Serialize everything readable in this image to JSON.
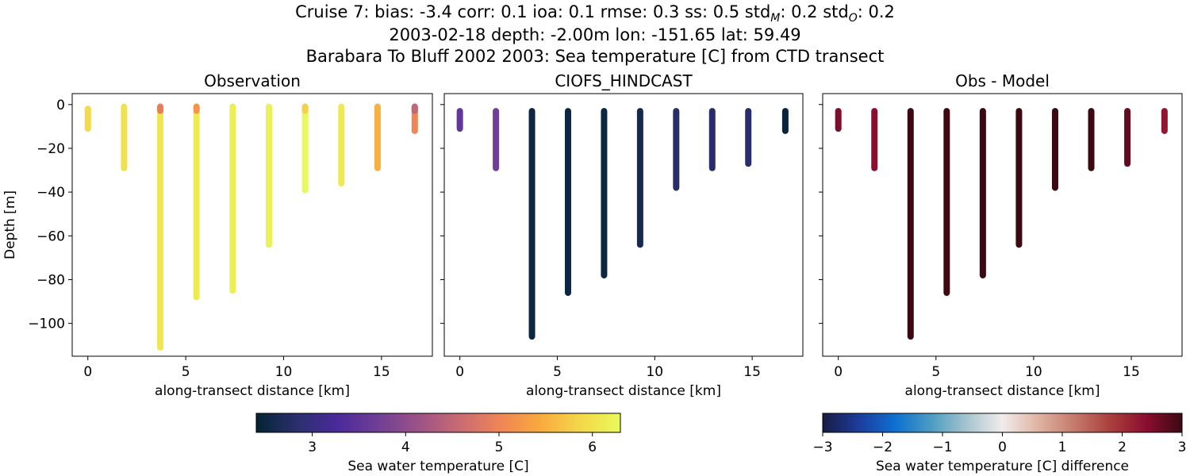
{
  "title": {
    "line1": "Cruise 7: bias: -3.4  corr: 0.1  ioa: 0.1  rmse: 0.3  ss: 0.5  std_M: 0.2  std_O: 0.2",
    "line1_parts": [
      "Cruise 7: bias: -3.4  corr: 0.1  ioa: 0.1  rmse: 0.3  ss: 0.5  std",
      "M",
      ": 0.2  std",
      "O",
      ": 0.2"
    ],
    "line2": "2003-02-18 depth: -2.00m lon: -151.65 lat: 59.49",
    "line3": "Barabara To Bluff 2002 2003: Sea temperature [C] from CTD transect"
  },
  "chart_data": [
    {
      "type": "scatter",
      "title": "Observation",
      "xlabel": "along-transect distance [km]",
      "ylabel": "Depth [m]",
      "xlim": [
        -0.8,
        17.6
      ],
      "ylim": [
        -115,
        5
      ],
      "xticks": [
        0,
        5,
        10,
        15
      ],
      "yticks": [
        0,
        -20,
        -40,
        -60,
        -80,
        -100
      ],
      "colormap": "thermal",
      "vmin": 2.4,
      "vmax": 6.3,
      "stations": [
        {
          "x": 0.0,
          "top": -2,
          "bottom": -11,
          "value": 5.9
        },
        {
          "x": 1.85,
          "top": -1,
          "bottom": -29,
          "value": 6.0
        },
        {
          "x": 3.7,
          "top": -1,
          "bottom": -111,
          "value": 6.05,
          "surface_value": 4.9
        },
        {
          "x": 5.55,
          "top": -1,
          "bottom": -88,
          "value": 6.1,
          "surface_value": 5.2
        },
        {
          "x": 7.4,
          "top": -1,
          "bottom": -85,
          "value": 6.15
        },
        {
          "x": 9.25,
          "top": -1,
          "bottom": -64,
          "value": 6.2
        },
        {
          "x": 11.1,
          "top": -1,
          "bottom": -39,
          "value": 6.3,
          "surface_value": 5.8
        },
        {
          "x": 12.95,
          "top": -1,
          "bottom": -36,
          "value": 6.1
        },
        {
          "x": 14.8,
          "top": -1,
          "bottom": -29,
          "value": 5.5
        },
        {
          "x": 16.7,
          "top": -1,
          "bottom": -12,
          "value": 5.0,
          "surface_value": 4.5
        }
      ]
    },
    {
      "type": "scatter",
      "title": "CIOFS_HINDCAST",
      "xlabel": "along-transect distance [km]",
      "xlim": [
        -0.8,
        17.6
      ],
      "ylim": [
        -115,
        5
      ],
      "xticks": [
        0,
        5,
        10,
        15
      ],
      "yticks": [
        0,
        -20,
        -40,
        -60,
        -80,
        -100
      ],
      "colormap": "thermal",
      "vmin": 2.4,
      "vmax": 6.3,
      "stations": [
        {
          "x": 0.0,
          "top": -3,
          "bottom": -11,
          "value": 3.55
        },
        {
          "x": 1.85,
          "top": -3,
          "bottom": -29,
          "value": 3.7
        },
        {
          "x": 3.7,
          "top": -3,
          "bottom": -106,
          "value": 2.5
        },
        {
          "x": 5.55,
          "top": -3,
          "bottom": -86,
          "value": 2.5
        },
        {
          "x": 7.4,
          "top": -3,
          "bottom": -78,
          "value": 2.5
        },
        {
          "x": 9.25,
          "top": -3,
          "bottom": -64,
          "value": 2.6
        },
        {
          "x": 11.1,
          "top": -3,
          "bottom": -38,
          "value": 2.8
        },
        {
          "x": 12.95,
          "top": -3,
          "bottom": -29,
          "value": 2.8
        },
        {
          "x": 14.8,
          "top": -3,
          "bottom": -27,
          "value": 2.8
        },
        {
          "x": 16.7,
          "top": -3,
          "bottom": -12,
          "value": 2.45
        }
      ]
    },
    {
      "type": "scatter",
      "title": "Obs - Model",
      "xlabel": "along-transect distance [km]",
      "xlim": [
        -0.8,
        17.6
      ],
      "ylim": [
        -115,
        5
      ],
      "xticks": [
        0,
        5,
        10,
        15
      ],
      "yticks": [
        0,
        -20,
        -40,
        -60,
        -80,
        -100
      ],
      "colormap": "balance",
      "vmin": -3,
      "vmax": 3,
      "stations": [
        {
          "x": 0.0,
          "top": -3,
          "bottom": -11,
          "value": 2.5
        },
        {
          "x": 1.85,
          "top": -3,
          "bottom": -29,
          "value": 2.4
        },
        {
          "x": 3.7,
          "top": -3,
          "bottom": -106,
          "value": 3.0
        },
        {
          "x": 5.55,
          "top": -3,
          "bottom": -86,
          "value": 3.0
        },
        {
          "x": 7.4,
          "top": -3,
          "bottom": -78,
          "value": 3.0
        },
        {
          "x": 9.25,
          "top": -3,
          "bottom": -64,
          "value": 3.0
        },
        {
          "x": 11.1,
          "top": -3,
          "bottom": -38,
          "value": 3.0
        },
        {
          "x": 12.95,
          "top": -3,
          "bottom": -29,
          "value": 3.0
        },
        {
          "x": 14.8,
          "top": -3,
          "bottom": -27,
          "value": 2.7
        },
        {
          "x": 16.7,
          "top": -3,
          "bottom": -12,
          "value": 2.3
        }
      ]
    }
  ],
  "colorbars": [
    {
      "label": "Sea water temperature [C]",
      "ticks": [
        3,
        4,
        5,
        6
      ],
      "tick_labels": [
        "3",
        "4",
        "5",
        "6"
      ],
      "vmin": 2.4,
      "vmax": 6.3,
      "colormap": "thermal"
    },
    {
      "label": "Sea water temperature [C] difference",
      "ticks": [
        -3,
        -2,
        -1,
        0,
        1,
        2,
        3
      ],
      "tick_labels": [
        "−3",
        "−2",
        "−1",
        "0",
        "1",
        "2",
        "3"
      ],
      "vmin": -3,
      "vmax": 3,
      "colormap": "balance"
    }
  ],
  "colormaps": {
    "thermal": [
      "#042333",
      "#2b2f6e",
      "#4b2a9a",
      "#6f3e96",
      "#9c5287",
      "#c86a73",
      "#ef8456",
      "#f9a93e",
      "#f4d74a",
      "#e8fa5b"
    ],
    "balance": [
      "#181c43",
      "#1d3c9c",
      "#0d6fd0",
      "#4b9bc2",
      "#a6c4cf",
      "#f1eceb",
      "#dfb3a3",
      "#c57a6a",
      "#ab3f3e",
      "#8a0e2f",
      "#3c0912"
    ]
  }
}
